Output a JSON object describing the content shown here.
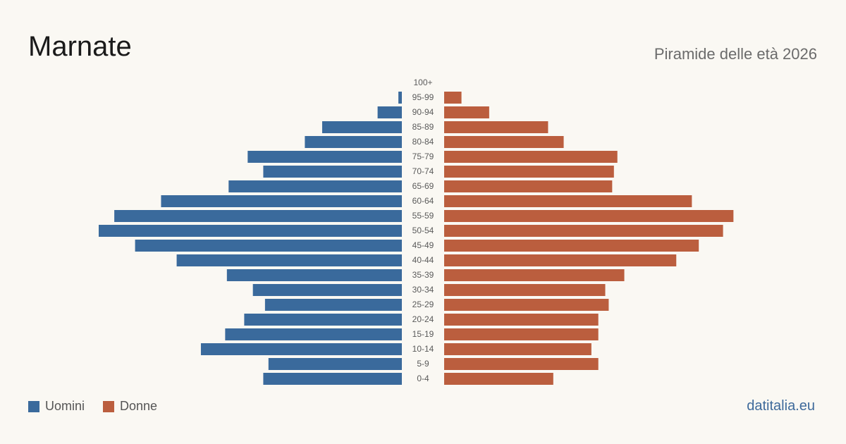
{
  "header": {
    "title": "Marnate",
    "subtitle": "Piramide delle età 2026"
  },
  "legend": {
    "men_label": "Uomini",
    "women_label": "Donne"
  },
  "footer": {
    "source": "datitalia.eu"
  },
  "colors": {
    "men": "#3a6a9c",
    "women": "#bb5e3e",
    "background": "#faf8f3"
  },
  "chart_data": {
    "type": "bar",
    "orientation": "horizontal",
    "categories": [
      "100+",
      "95-99",
      "90-94",
      "85-89",
      "80-84",
      "75-79",
      "70-74",
      "65-69",
      "60-64",
      "55-59",
      "50-54",
      "45-49",
      "40-44",
      "35-39",
      "30-34",
      "25-29",
      "20-24",
      "15-19",
      "10-14",
      "5-9",
      "0-4"
    ],
    "series": [
      {
        "name": "Uomini",
        "values": [
          0,
          2,
          14,
          46,
          56,
          89,
          80,
          100,
          139,
          166,
          175,
          154,
          130,
          101,
          86,
          79,
          91,
          102,
          116,
          77,
          80
        ]
      },
      {
        "name": "Donne",
        "values": [
          0,
          10,
          26,
          60,
          69,
          100,
          98,
          97,
          143,
          167,
          161,
          147,
          134,
          104,
          93,
          95,
          89,
          89,
          85,
          89,
          63
        ]
      }
    ],
    "xlim": [
      0,
      175
    ],
    "legend_position": "bottom-left",
    "grid": false
  }
}
